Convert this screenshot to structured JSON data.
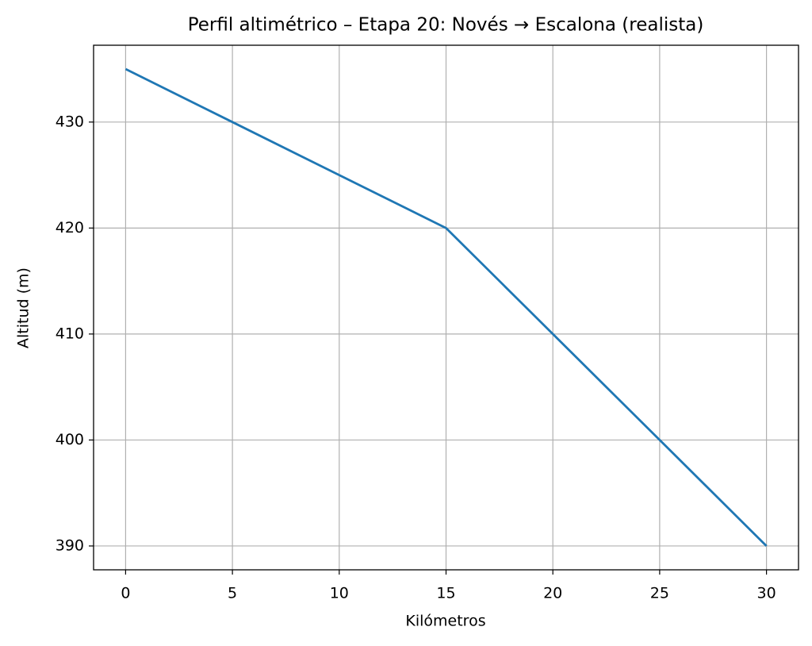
{
  "chart_data": {
    "type": "line",
    "title": "Perfil altimétrico – Etapa 20: Novés → Escalona (realista)",
    "x_label": "Kilómetros",
    "y_label": "Altitud (m)",
    "x": [
      0,
      5,
      10,
      15,
      20,
      25,
      30
    ],
    "values": [
      435,
      430,
      425,
      420,
      410,
      400,
      390
    ],
    "color": "#1f77b4",
    "xlim": [
      -1.5,
      31.5
    ],
    "xticks": [
      0,
      5,
      10,
      15,
      20,
      25,
      30
    ],
    "ylim": [
      387.75,
      437.25
    ],
    "yticks": [
      390,
      400,
      410,
      420,
      430
    ],
    "grid": true
  }
}
